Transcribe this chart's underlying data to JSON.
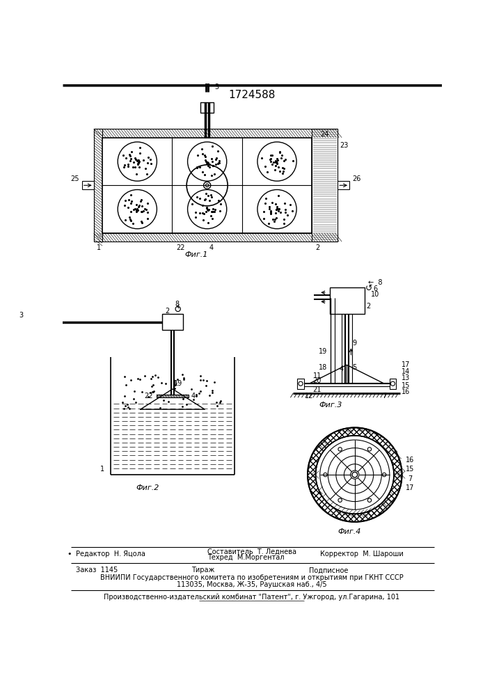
{
  "title": "1724588",
  "bg_color": "#ffffff",
  "line_color": "#000000",
  "editor_line": "Редактор  Н. Яцола",
  "corrector_line": "Корректор  М. Шароши",
  "sostavitel": "Составитель  Т. Леднева",
  "tehred": "Техред  М.Моргентал",
  "zakaz": "Заказ  1145",
  "tirazh": "Тираж",
  "podpisnoe": "Подписное",
  "vniiipi_line": "ВНИИПИ Государственного комитета по изобретениям и открытиям при ГКНТ СССР",
  "address_line": "113035, Москва, Ж-35, Раушская наб., 4/5",
  "publisher_line": "Производственно-издательский комбинат \"Патент\", г. Ужгород, ул.Гагарина, 101",
  "fig1_label": "Фиг.1",
  "fig2_label": "Фиг.2",
  "fig3_label": "Фиг.3",
  "fig4_label": "Фиг.4"
}
